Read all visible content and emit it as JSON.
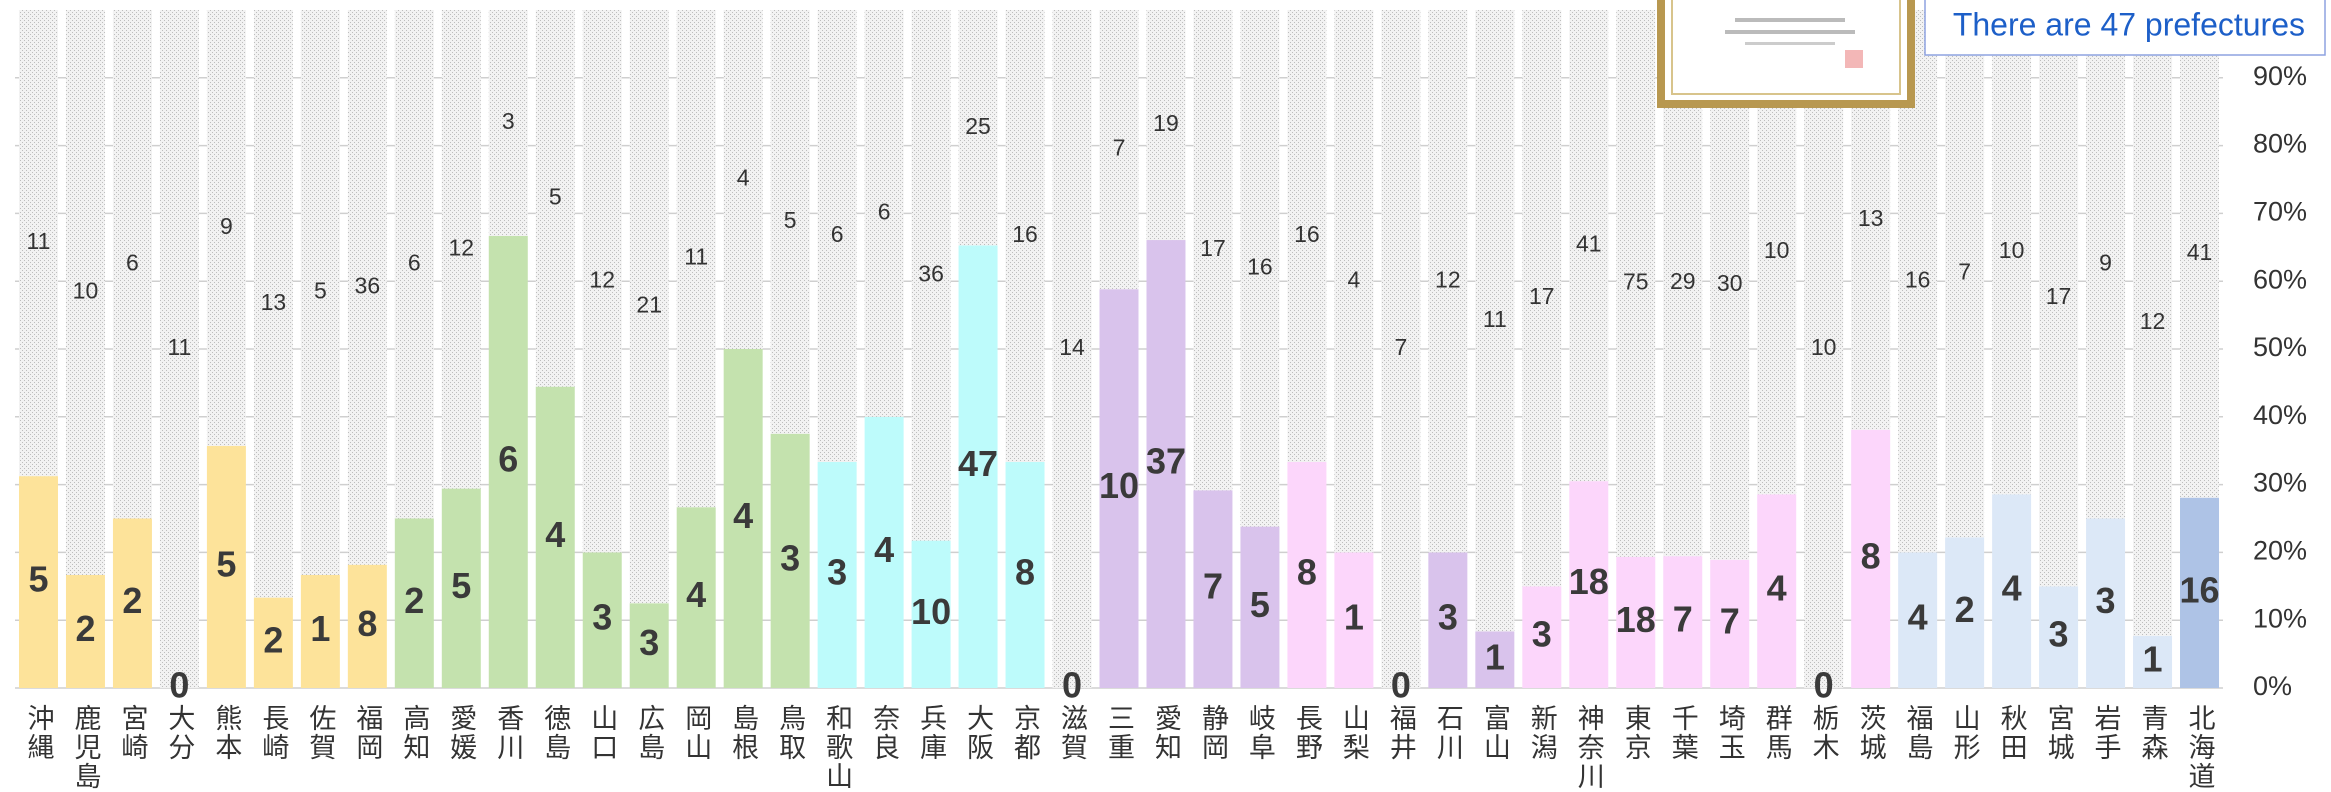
{
  "chart_data": {
    "type": "bar",
    "stacked": true,
    "normalize": true,
    "categories": [
      "沖縄",
      "鹿児島",
      "宮崎",
      "大分",
      "熊本",
      "長崎",
      "佐賀",
      "福岡",
      "高知",
      "愛媛",
      "香川",
      "徳島",
      "山口",
      "広島",
      "岡山",
      "島根",
      "鳥取",
      "和歌山",
      "奈良",
      "兵庫",
      "大阪",
      "京都",
      "滋賀",
      "三重",
      "愛知",
      "静岡",
      "岐阜",
      "長野",
      "山梨",
      "福井",
      "石川",
      "富山",
      "新潟",
      "神奈川",
      "東京",
      "千葉",
      "埼玉",
      "群馬",
      "栃木",
      "茨城",
      "福島",
      "山形",
      "秋田",
      "宮城",
      "岩手",
      "青森",
      "北海道"
    ],
    "series": [
      {
        "values": [
          5,
          2,
          2,
          0,
          5,
          2,
          1,
          8,
          2,
          5,
          6,
          4,
          3,
          3,
          4,
          4,
          3,
          3,
          4,
          10,
          47,
          8,
          0,
          10,
          37,
          7,
          5,
          8,
          1,
          0,
          3,
          1,
          3,
          18,
          18,
          7,
          7,
          4,
          0,
          8,
          4,
          2,
          4,
          3,
          3,
          1,
          16
        ],
        "colors": [
          "#fde39a",
          "#fde39a",
          "#fde39a",
          "#fde39a",
          "#fde39a",
          "#fde39a",
          "#fde39a",
          "#fde39a",
          "#c4e2ae",
          "#c4e2ae",
          "#c4e2ae",
          "#c4e2ae",
          "#c4e2ae",
          "#c4e2ae",
          "#c4e2ae",
          "#c4e2ae",
          "#c4e2ae",
          "#bdfbfb",
          "#bdfbfb",
          "#bdfbfb",
          "#bdfbfb",
          "#bdfbfb",
          "#bdfbfb",
          "#d9c3ec",
          "#d9c3ec",
          "#d9c3ec",
          "#d9c3ec",
          "#fcd6fb",
          "#fcd6fb",
          "#d9c3ec",
          "#d9c3ec",
          "#d9c3ec",
          "#fcd6fb",
          "#fcd6fb",
          "#fcd6fb",
          "#fcd6fb",
          "#fcd6fb",
          "#fcd6fb",
          "#fcd6fb",
          "#fcd6fb",
          "#dce8f7",
          "#dce8f7",
          "#dce8f7",
          "#dce8f7",
          "#dce8f7",
          "#dce8f7",
          "#aec3e6"
        ]
      },
      {
        "values": [
          11,
          10,
          6,
          11,
          9,
          13,
          5,
          36,
          6,
          12,
          3,
          5,
          12,
          21,
          11,
          4,
          5,
          6,
          6,
          36,
          25,
          16,
          14,
          7,
          19,
          17,
          16,
          16,
          4,
          7,
          12,
          11,
          17,
          41,
          75,
          29,
          30,
          10,
          10,
          13,
          16,
          7,
          10,
          17,
          9,
          12,
          41
        ],
        "color": "#d9d9d9"
      }
    ],
    "ylim": [
      0,
      1
    ],
    "yticks": [
      {
        "value": 0,
        "label": "0%"
      },
      {
        "value": 0.1,
        "label": "10%"
      },
      {
        "value": 0.2,
        "label": "20%"
      },
      {
        "value": 0.3,
        "label": "30%"
      },
      {
        "value": 0.4,
        "label": "40%"
      },
      {
        "value": 0.5,
        "label": "50%"
      },
      {
        "value": 0.6,
        "label": "60%"
      },
      {
        "value": 0.7,
        "label": "70%"
      },
      {
        "value": 0.8,
        "label": "80%"
      },
      {
        "value": 0.9,
        "label": "90%"
      }
    ],
    "grid": true,
    "annotation": "There are 47 prefectures"
  }
}
